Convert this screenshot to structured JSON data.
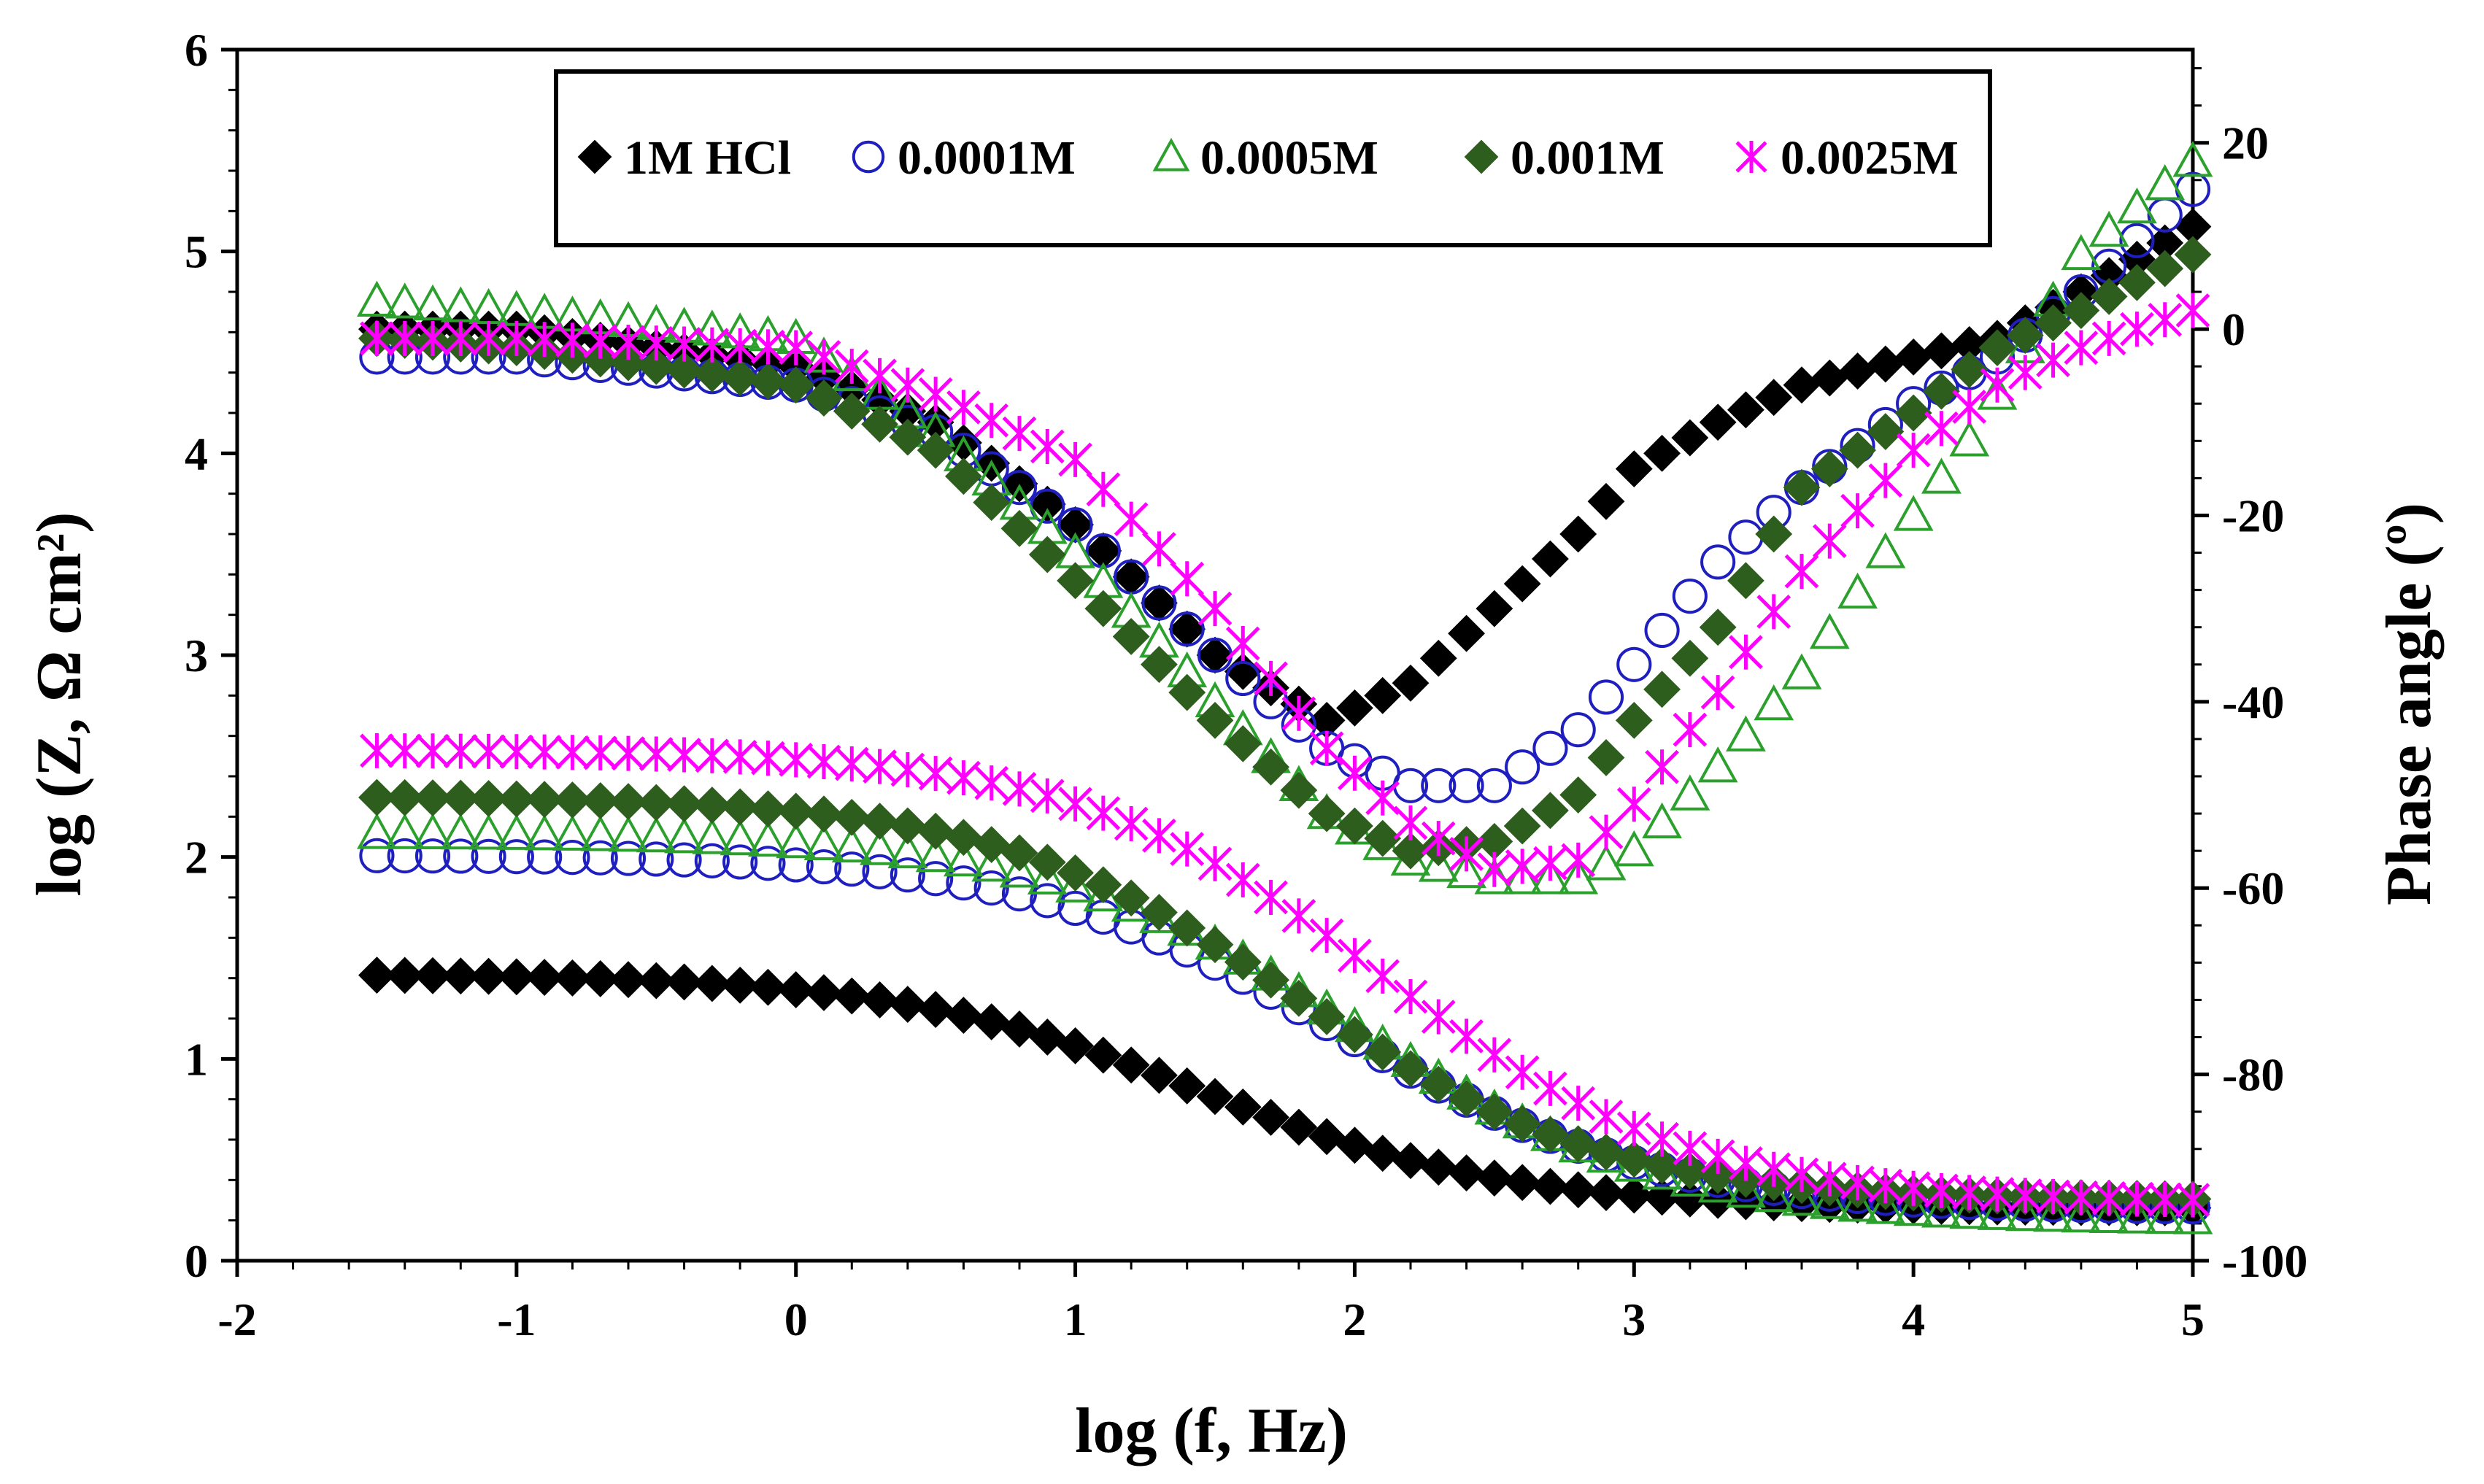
{
  "chart_data": {
    "type": "scatter",
    "title": "",
    "xlabel": "log (f, Hz)",
    "ylabel_left": "log (Z, Ω cm²)",
    "ylabel_right": "Phase angle (º)",
    "xlim": [
      -2,
      5
    ],
    "ylim_left": [
      0,
      6
    ],
    "ylim_right": [
      -100,
      30
    ],
    "x_ticks": [
      "-2",
      "-1",
      "0",
      "1",
      "2",
      "3",
      "4",
      "5"
    ],
    "y_left_ticks": [
      "0",
      "1",
      "2",
      "3",
      "4",
      "5",
      "6"
    ],
    "y_right_ticks": [
      "-100",
      "-80",
      "-60",
      "-40",
      "-20",
      "0",
      "20"
    ],
    "legend_position": "top-center",
    "legend": [
      "1M HCl",
      "0.0001M",
      "0.0005M",
      "0.001M",
      "0.0025M"
    ],
    "series": [
      {
        "name": "1M HCl",
        "marker": "diamond",
        "color": "#000000",
        "bode_rs": 0.26,
        "bode_rct": 1.16,
        "bode_center": 1.45,
        "bode_width": 0.55,
        "phase_points": [
          [
            -1.5,
            0
          ],
          [
            -1.0,
            0
          ],
          [
            0.0,
            -4
          ],
          [
            0.5,
            -10
          ],
          [
            1.0,
            -21
          ],
          [
            1.5,
            -35
          ],
          [
            1.9,
            -42
          ],
          [
            2.2,
            -38
          ],
          [
            2.5,
            -30
          ],
          [
            2.8,
            -22
          ],
          [
            3.0,
            -15
          ],
          [
            3.3,
            -10
          ],
          [
            3.6,
            -6
          ],
          [
            4.0,
            -3
          ],
          [
            4.3,
            -1
          ],
          [
            4.6,
            4
          ],
          [
            5.0,
            11
          ]
        ]
      },
      {
        "name": "0.0001M",
        "marker": "circle",
        "color": "#1f1fbf",
        "bode_rs": 0.26,
        "bode_rct": 1.75,
        "bode_center": 1.95,
        "bode_width": 0.55,
        "phase_points": [
          [
            -1.5,
            -3
          ],
          [
            -1.0,
            -3
          ],
          [
            0.0,
            -6
          ],
          [
            0.5,
            -11
          ],
          [
            1.0,
            -21
          ],
          [
            1.5,
            -35
          ],
          [
            1.9,
            -45
          ],
          [
            2.2,
            -49
          ],
          [
            2.5,
            -49
          ],
          [
            2.8,
            -43
          ],
          [
            3.0,
            -36
          ],
          [
            3.3,
            -25
          ],
          [
            3.6,
            -17
          ],
          [
            4.0,
            -8
          ],
          [
            4.3,
            -3
          ],
          [
            4.6,
            4
          ],
          [
            5.0,
            15
          ]
        ]
      },
      {
        "name": "0.0005M",
        "marker": "triangle",
        "color": "#2ca02c",
        "bode_rs": 0.2,
        "bode_rct": 1.92,
        "bode_center": 2.0,
        "bode_width": 0.55,
        "phase_points": [
          [
            -1.5,
            3
          ],
          [
            -1.0,
            2
          ],
          [
            0.0,
            -1
          ],
          [
            0.5,
            -11
          ],
          [
            1.0,
            -24
          ],
          [
            1.5,
            -40
          ],
          [
            1.9,
            -52
          ],
          [
            2.2,
            -57
          ],
          [
            2.5,
            -59
          ],
          [
            2.8,
            -59
          ],
          [
            3.0,
            -56
          ],
          [
            3.3,
            -47
          ],
          [
            3.6,
            -37
          ],
          [
            3.9,
            -24
          ],
          [
            4.2,
            -12
          ],
          [
            4.6,
            8
          ],
          [
            5.0,
            18
          ]
        ]
      },
      {
        "name": "0.001M",
        "marker": "diamond",
        "color": "#2e5e1e",
        "bode_rs": 0.3,
        "bode_rct": 2.0,
        "bode_center": 1.8,
        "bode_width": 0.55,
        "phase_points": [
          [
            -1.5,
            -1
          ],
          [
            -1.0,
            -2
          ],
          [
            0.0,
            -6
          ],
          [
            0.5,
            -13
          ],
          [
            1.0,
            -27
          ],
          [
            1.5,
            -42
          ],
          [
            1.9,
            -52
          ],
          [
            2.2,
            -56
          ],
          [
            2.5,
            -55
          ],
          [
            2.8,
            -50
          ],
          [
            3.0,
            -42
          ],
          [
            3.3,
            -32
          ],
          [
            3.6,
            -17
          ],
          [
            4.0,
            -9
          ],
          [
            4.3,
            -2
          ],
          [
            4.6,
            2
          ],
          [
            5.0,
            8
          ]
        ]
      },
      {
        "name": "0.0025M",
        "marker": "star",
        "color": "#ff00ff",
        "bode_rs": 0.29,
        "bode_rct": 2.24,
        "bode_center": 2.1,
        "bode_width": 0.55,
        "phase_points": [
          [
            -1.5,
            -1
          ],
          [
            -1.0,
            -1
          ],
          [
            0.0,
            -2
          ],
          [
            0.5,
            -7
          ],
          [
            1.0,
            -14
          ],
          [
            1.5,
            -30
          ],
          [
            1.9,
            -45
          ],
          [
            2.2,
            -53
          ],
          [
            2.5,
            -58
          ],
          [
            2.8,
            -57
          ],
          [
            3.0,
            -51
          ],
          [
            3.3,
            -39
          ],
          [
            3.6,
            -26
          ],
          [
            4.0,
            -13
          ],
          [
            4.3,
            -6
          ],
          [
            4.6,
            -2
          ],
          [
            5.0,
            2
          ]
        ]
      }
    ]
  }
}
